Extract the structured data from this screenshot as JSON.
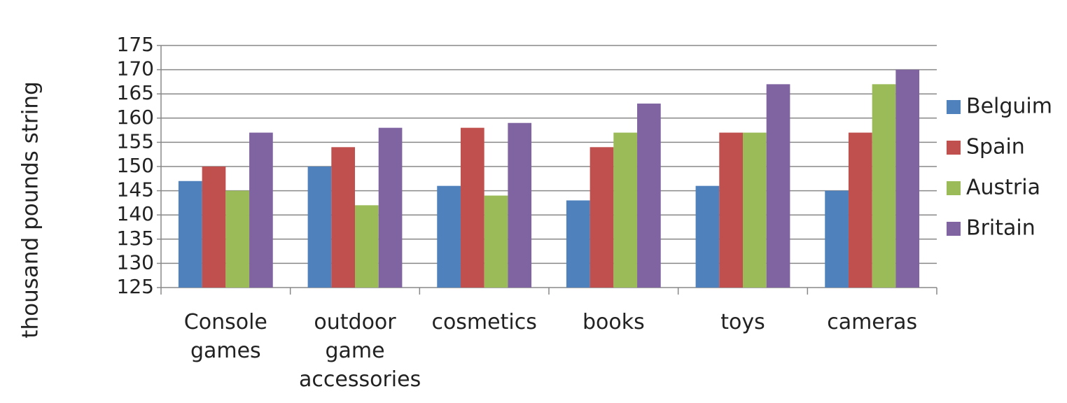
{
  "chart_data": {
    "type": "bar",
    "y_label": "thousand pounds string",
    "categories": [
      "Console games",
      "outdoor game accessories",
      "cosmetics",
      "books",
      "toys",
      "cameras"
    ],
    "series": [
      {
        "name": "Belguim",
        "color": "#4f81bd",
        "values": [
          147,
          150,
          146,
          143,
          146,
          145
        ]
      },
      {
        "name": "Spain",
        "color": "#c0504d",
        "values": [
          150,
          154,
          158,
          154,
          157,
          157
        ]
      },
      {
        "name": "Austria",
        "color": "#9bbb59",
        "values": [
          145,
          142,
          144,
          157,
          157,
          167
        ]
      },
      {
        "name": "Britain",
        "color": "#8064a2",
        "values": [
          157,
          158,
          159,
          163,
          167,
          170
        ]
      }
    ],
    "ylim": [
      125,
      175
    ],
    "yticks": [
      125,
      130,
      135,
      140,
      145,
      150,
      155,
      160,
      165,
      170,
      175
    ],
    "grid": true,
    "legend": "right"
  }
}
